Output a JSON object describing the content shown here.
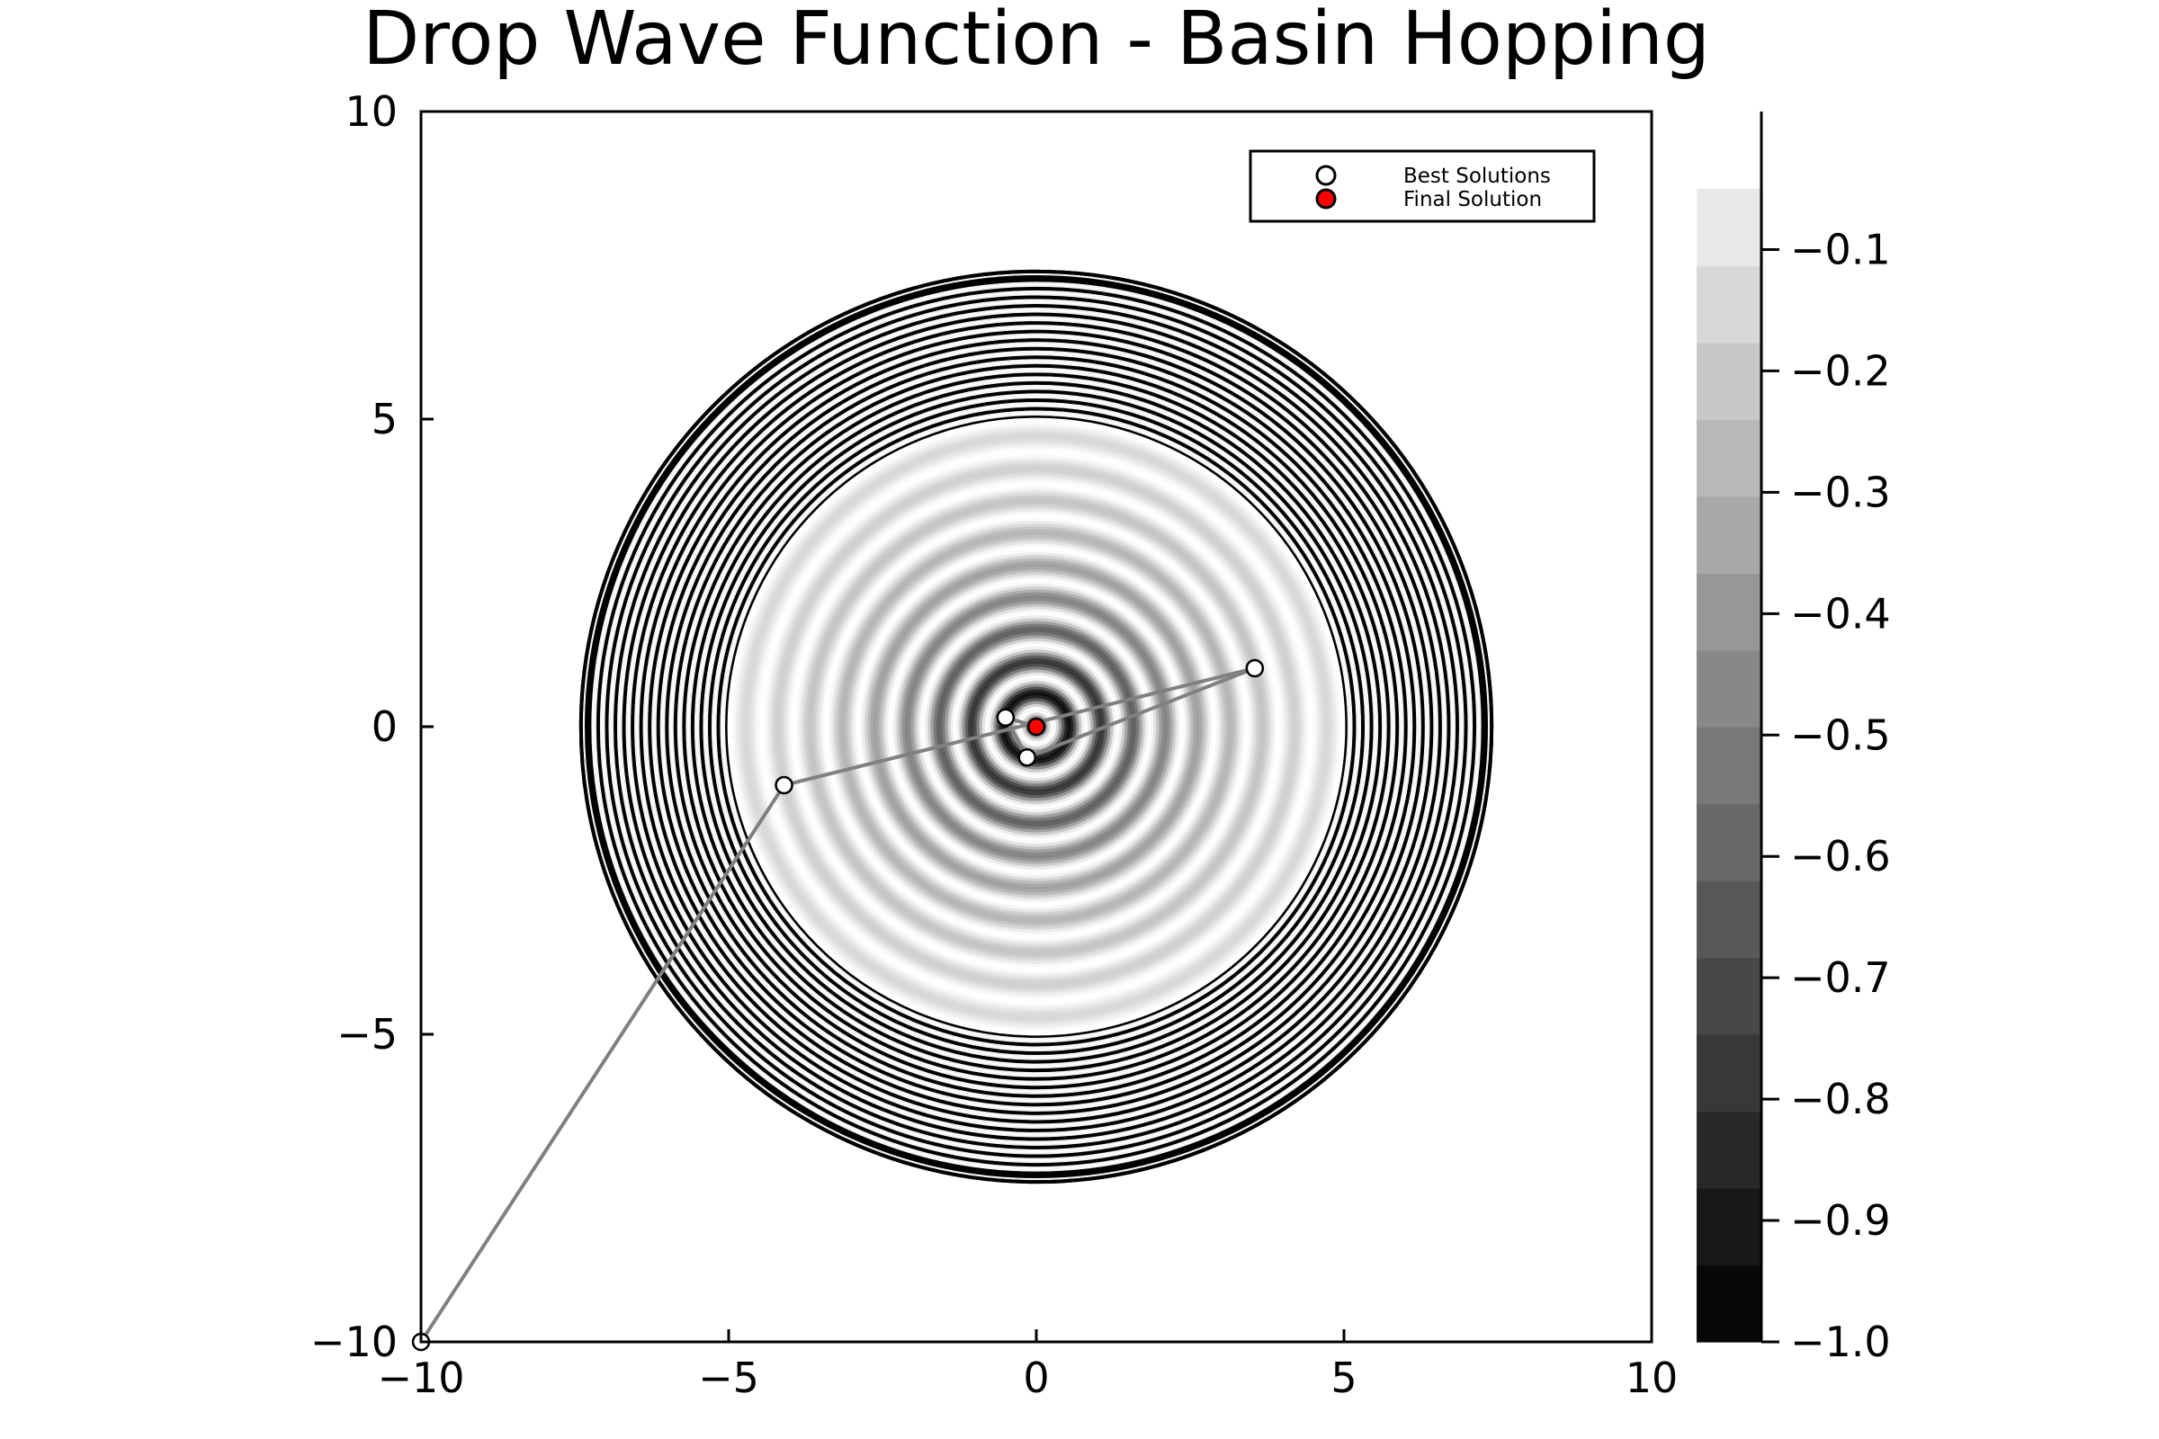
{
  "chart_data": {
    "type": "contour",
    "title": "Drop Wave Function - Basin Hopping",
    "xlabel": "",
    "ylabel": "",
    "xlim": [
      -10,
      10
    ],
    "ylim": [
      -10,
      10
    ],
    "xticks": [
      -10,
      -5,
      0,
      5,
      10
    ],
    "yticks": [
      -10,
      -5,
      0,
      5,
      10
    ],
    "xtick_labels": [
      "−10",
      "−5",
      "0",
      "5",
      "10"
    ],
    "ytick_labels": [
      "−10",
      "−5",
      "0",
      "5",
      "10"
    ],
    "grid": false,
    "function": "drop-wave: f(x,y) = -(1 + cos(12·sqrt(x²+y²))) / (0.5·(x²+y²) + 2)",
    "contour_outer_radius": 7.4,
    "colorbar": {
      "range": [
        -1.0,
        0.0
      ],
      "ticks": [
        -0.1,
        -0.2,
        -0.3,
        -0.4,
        -0.5,
        -0.6,
        -0.7,
        -0.8,
        -0.9,
        -1.0
      ],
      "tick_labels": [
        "−0.1",
        "−0.2",
        "−0.3",
        "−0.4",
        "−0.5",
        "−0.6",
        "−0.7",
        "−0.8",
        "−0.9",
        "−1.0"
      ],
      "colormap": [
        "#000000",
        "#ffffff"
      ]
    },
    "legend": {
      "position": "top-right",
      "entries": [
        {
          "name": "Best Solutions",
          "marker_fill": "#ffffff",
          "marker_edge": "#000000"
        },
        {
          "name": "Final Solution",
          "marker_fill": "#ff0000",
          "marker_edge": "#000000"
        }
      ]
    },
    "path_color": "#808080",
    "best_solutions": [
      {
        "x": -10.0,
        "y": -10.0
      },
      {
        "x": -4.1,
        "y": -0.95
      },
      {
        "x": 3.55,
        "y": 0.95
      },
      {
        "x": -0.15,
        "y": -0.5
      },
      {
        "x": -0.5,
        "y": 0.15
      },
      {
        "x": 0.0,
        "y": 0.0
      }
    ],
    "final_solution": {
      "x": 0.0,
      "y": 0.0
    }
  }
}
